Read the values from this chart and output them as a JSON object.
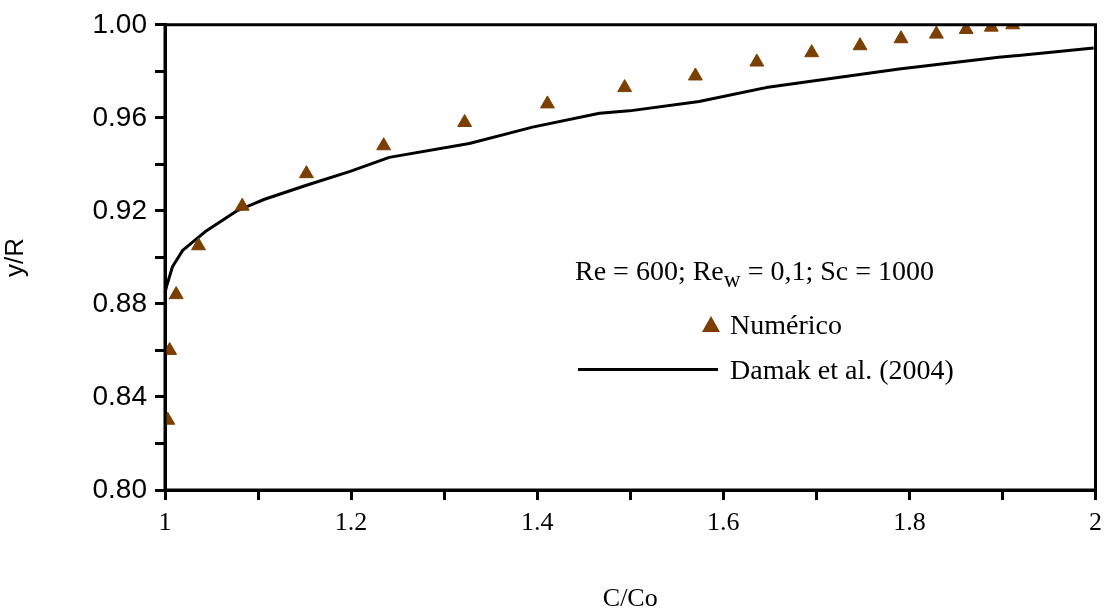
{
  "chart_data": {
    "type": "scatter",
    "xlabel": "C/Co",
    "ylabel": "y/R",
    "legend_title": "Re = 600; Re$_{w}$ = 0,1; Sc = 1000",
    "legend": "right",
    "grid": false,
    "xlim": [
      1,
      2
    ],
    "xticks": [
      1,
      {
        "value": 1.1,
        "label": null
      },
      1.2,
      {
        "value": 1.3,
        "label": null
      },
      1.4,
      {
        "value": 1.5,
        "label": null
      },
      1.6,
      {
        "value": 1.7,
        "label": null
      },
      1.8,
      {
        "value": 1.9,
        "label": null
      },
      2
    ],
    "ylim": [
      0.8,
      1.0
    ],
    "yticks": [
      {
        "value": 0.8,
        "label": "0.80"
      },
      {
        "value": 0.82,
        "label": null
      },
      {
        "value": 0.84,
        "label": "0.84"
      },
      {
        "value": 0.86,
        "label": null
      },
      {
        "value": 0.88,
        "label": "0.88"
      },
      {
        "value": 0.9,
        "label": null
      },
      {
        "value": 0.92,
        "label": "0.92"
      },
      {
        "value": 0.94,
        "label": null
      },
      {
        "value": 0.96,
        "label": "0.96"
      },
      {
        "value": 0.98,
        "label": null
      },
      {
        "value": 1.0,
        "label": "1.00"
      }
    ],
    "series": [
      {
        "name": "Numérico",
        "marker": "triangle",
        "color": "#7b3f00",
        "x": [
          1.003,
          1.005,
          1.012,
          1.036,
          1.083,
          1.152,
          1.235,
          1.322,
          1.411,
          1.494,
          1.57,
          1.636,
          1.695,
          1.747,
          1.791,
          1.829,
          1.861,
          1.888,
          1.911
        ],
        "values": [
          0.83,
          0.86,
          0.884,
          0.905,
          0.922,
          0.936,
          0.948,
          0.958,
          0.966,
          0.973,
          0.978,
          0.984,
          0.988,
          0.991,
          0.994,
          0.996,
          0.998,
          0.999,
          1.0
        ]
      },
      {
        "name": "Damak et al. (2004)",
        "type": "line",
        "marker": "none",
        "line_style": "solid",
        "color": "#000000",
        "x": [
          1.0,
          1.002,
          1.008,
          1.019,
          1.043,
          1.077,
          1.107,
          1.152,
          1.199,
          1.241,
          1.327,
          1.395,
          1.467,
          1.499,
          1.574,
          1.646,
          1.789,
          1.896,
          1.998
        ],
        "values": [
          0.885,
          0.888,
          0.896,
          0.903,
          0.911,
          0.92,
          0.925,
          0.931,
          0.937,
          0.943,
          0.949,
          0.956,
          0.962,
          0.963,
          0.967,
          0.973,
          0.981,
          0.986,
          0.99
        ]
      }
    ]
  }
}
